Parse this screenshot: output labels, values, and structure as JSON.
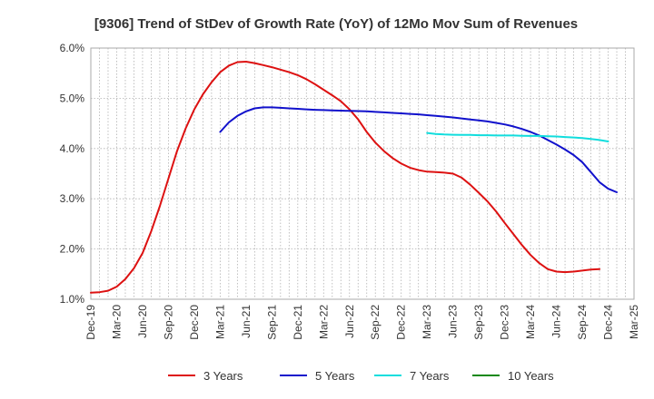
{
  "chart_data": {
    "type": "line",
    "title": "[9306]  Trend of StDev of Growth Rate (YoY) of 12Mo Mov Sum of Revenues",
    "xlabel": "",
    "ylabel": "",
    "ylim": [
      1.0,
      6.0
    ],
    "yticks": [
      1.0,
      2.0,
      3.0,
      4.0,
      5.0,
      6.0
    ],
    "ytick_labels": [
      "1.0%",
      "2.0%",
      "3.0%",
      "4.0%",
      "5.0%",
      "6.0%"
    ],
    "x_start": "Dec-19",
    "x_total_months": 63,
    "x_tick_labels": [
      "Dec-19",
      "Mar-20",
      "Jun-20",
      "Sep-20",
      "Dec-20",
      "Mar-21",
      "Jun-21",
      "Sep-21",
      "Dec-21",
      "Mar-22",
      "Jun-22",
      "Sep-22",
      "Dec-22",
      "Mar-23",
      "Jun-23",
      "Sep-23",
      "Dec-23",
      "Mar-24",
      "Jun-24",
      "Sep-24",
      "Dec-24",
      "Mar-25"
    ],
    "grid": true,
    "legend_position": "bottom",
    "series": [
      {
        "name": "3 Years",
        "color": "#dd1111",
        "start_month": 0,
        "values": [
          1.13,
          1.14,
          1.17,
          1.25,
          1.4,
          1.62,
          1.92,
          2.35,
          2.85,
          3.4,
          3.95,
          4.4,
          4.78,
          5.08,
          5.32,
          5.52,
          5.65,
          5.72,
          5.73,
          5.7,
          5.66,
          5.62,
          5.57,
          5.52,
          5.46,
          5.38,
          5.28,
          5.17,
          5.06,
          4.94,
          4.78,
          4.58,
          4.33,
          4.12,
          3.95,
          3.81,
          3.7,
          3.62,
          3.57,
          3.54,
          3.53,
          3.52,
          3.5,
          3.42,
          3.28,
          3.12,
          2.95,
          2.75,
          2.52,
          2.3,
          2.08,
          1.88,
          1.72,
          1.6,
          1.55,
          1.54,
          1.55,
          1.57,
          1.59,
          1.6
        ]
      },
      {
        "name": "5 Years",
        "color": "#1111cc",
        "start_month": 15,
        "values": [
          4.33,
          4.52,
          4.65,
          4.74,
          4.8,
          4.82,
          4.82,
          4.81,
          4.8,
          4.79,
          4.78,
          4.77,
          4.765,
          4.76,
          4.755,
          4.75,
          4.745,
          4.74,
          4.73,
          4.72,
          4.71,
          4.7,
          4.69,
          4.68,
          4.665,
          4.65,
          4.635,
          4.62,
          4.6,
          4.58,
          4.56,
          4.54,
          4.51,
          4.48,
          4.44,
          4.39,
          4.33,
          4.26,
          4.17,
          4.08,
          3.98,
          3.87,
          3.73,
          3.53,
          3.33,
          3.2,
          3.13
        ]
      },
      {
        "name": "7 Years",
        "color": "#11dddd",
        "start_month": 39,
        "values": [
          4.31,
          4.29,
          4.28,
          4.275,
          4.27,
          4.27,
          4.265,
          4.265,
          4.26,
          4.26,
          4.26,
          4.255,
          4.25,
          4.25,
          4.245,
          4.24,
          4.23,
          4.22,
          4.21,
          4.19,
          4.17,
          4.14
        ]
      },
      {
        "name": "10 Years",
        "color": "#118811",
        "start_month": 0,
        "values": []
      }
    ]
  }
}
